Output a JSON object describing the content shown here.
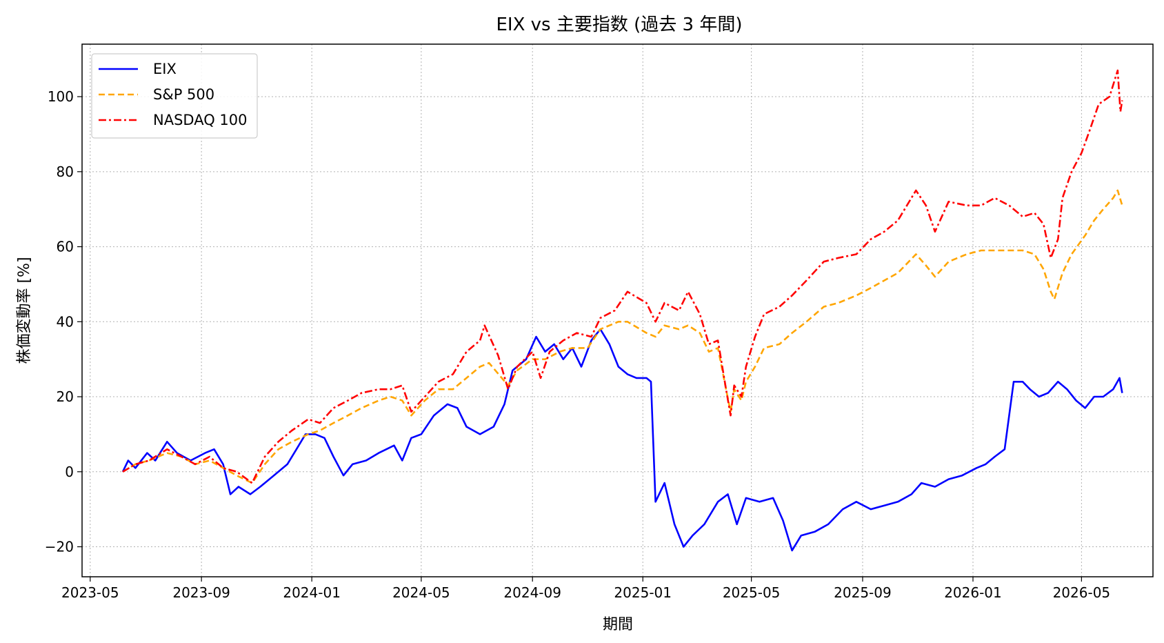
{
  "chart_data": {
    "type": "line",
    "title": "EIX vs 主要指数 (過去 3 年間)",
    "xlabel": "期間",
    "ylabel": "株価変動率 [%]",
    "xlim": [
      "2023-04-22",
      "2026-07-19"
    ],
    "ylim": [
      -28,
      114
    ],
    "x_ticks": [
      "2023-05",
      "2023-09",
      "2024-01",
      "2024-05",
      "2024-09",
      "2025-01",
      "2025-05",
      "2025-09",
      "2026-01",
      "2026-05"
    ],
    "y_ticks": [
      -20,
      0,
      20,
      40,
      60,
      80,
      100
    ],
    "grid": true,
    "legend_position": "top-left",
    "series": [
      {
        "name": "EIX",
        "color": "#0000ff",
        "style": "solid",
        "points": [
          [
            "2023-06-06",
            0
          ],
          [
            "2023-06-12",
            3
          ],
          [
            "2023-06-20",
            1
          ],
          [
            "2023-07-03",
            5
          ],
          [
            "2023-07-12",
            3
          ],
          [
            "2023-07-25",
            8
          ],
          [
            "2023-08-05",
            5
          ],
          [
            "2023-08-20",
            3
          ],
          [
            "2023-09-05",
            5
          ],
          [
            "2023-09-15",
            6
          ],
          [
            "2023-09-25",
            2
          ],
          [
            "2023-10-03",
            -6
          ],
          [
            "2023-10-12",
            -4
          ],
          [
            "2023-10-25",
            -6
          ],
          [
            "2023-11-05",
            -4
          ],
          [
            "2023-11-20",
            -1
          ],
          [
            "2023-12-05",
            2
          ],
          [
            "2023-12-15",
            6
          ],
          [
            "2023-12-25",
            10
          ],
          [
            "2024-01-05",
            10
          ],
          [
            "2024-01-15",
            9
          ],
          [
            "2024-01-25",
            4
          ],
          [
            "2024-02-05",
            -1
          ],
          [
            "2024-02-15",
            2
          ],
          [
            "2024-03-01",
            3
          ],
          [
            "2024-03-15",
            5
          ],
          [
            "2024-04-01",
            7
          ],
          [
            "2024-04-10",
            3
          ],
          [
            "2024-04-20",
            9
          ],
          [
            "2024-05-01",
            10
          ],
          [
            "2024-05-15",
            15
          ],
          [
            "2024-05-30",
            18
          ],
          [
            "2024-06-10",
            17
          ],
          [
            "2024-06-20",
            12
          ],
          [
            "2024-07-05",
            10
          ],
          [
            "2024-07-20",
            12
          ],
          [
            "2024-08-01",
            18
          ],
          [
            "2024-08-10",
            27
          ],
          [
            "2024-08-25",
            30
          ],
          [
            "2024-09-05",
            36
          ],
          [
            "2024-09-15",
            32
          ],
          [
            "2024-09-25",
            34
          ],
          [
            "2024-10-05",
            30
          ],
          [
            "2024-10-15",
            33
          ],
          [
            "2024-10-25",
            28
          ],
          [
            "2024-11-05",
            35
          ],
          [
            "2024-11-15",
            38
          ],
          [
            "2024-11-25",
            34
          ],
          [
            "2024-12-05",
            28
          ],
          [
            "2024-12-15",
            26
          ],
          [
            "2024-12-25",
            25
          ],
          [
            "2025-01-05",
            25
          ],
          [
            "2025-01-10",
            24
          ],
          [
            "2025-01-15",
            -8
          ],
          [
            "2025-01-25",
            -3
          ],
          [
            "2025-02-05",
            -14
          ],
          [
            "2025-02-15",
            -20
          ],
          [
            "2025-02-25",
            -17
          ],
          [
            "2025-03-10",
            -14
          ],
          [
            "2025-03-25",
            -8
          ],
          [
            "2025-04-05",
            -6
          ],
          [
            "2025-04-15",
            -14
          ],
          [
            "2025-04-25",
            -7
          ],
          [
            "2025-05-10",
            -8
          ],
          [
            "2025-05-25",
            -7
          ],
          [
            "2025-06-05",
            -13
          ],
          [
            "2025-06-15",
            -21
          ],
          [
            "2025-06-25",
            -17
          ],
          [
            "2025-07-10",
            -16
          ],
          [
            "2025-07-25",
            -14
          ],
          [
            "2025-08-10",
            -10
          ],
          [
            "2025-08-25",
            -8
          ],
          [
            "2025-09-10",
            -10
          ],
          [
            "2025-09-25",
            -9
          ],
          [
            "2025-10-10",
            -8
          ],
          [
            "2025-10-25",
            -6
          ],
          [
            "2025-11-05",
            -3
          ],
          [
            "2025-11-20",
            -4
          ],
          [
            "2025-12-05",
            -2
          ],
          [
            "2025-12-20",
            -1
          ],
          [
            "2026-01-05",
            1
          ],
          [
            "2026-01-15",
            2
          ],
          [
            "2026-01-25",
            4
          ],
          [
            "2026-02-05",
            6
          ],
          [
            "2026-02-15",
            24
          ],
          [
            "2026-02-25",
            24
          ],
          [
            "2026-03-05",
            22
          ],
          [
            "2026-03-15",
            20
          ],
          [
            "2026-03-25",
            21
          ],
          [
            "2026-04-05",
            24
          ],
          [
            "2026-04-15",
            22
          ],
          [
            "2026-04-25",
            19
          ],
          [
            "2026-05-05",
            17
          ],
          [
            "2026-05-15",
            20
          ],
          [
            "2026-05-25",
            20
          ],
          [
            "2026-06-05",
            22
          ],
          [
            "2026-06-12",
            25
          ],
          [
            "2026-06-15",
            21
          ]
        ]
      },
      {
        "name": "S&P 500",
        "color": "#ffa500",
        "style": "dashed",
        "points": [
          [
            "2023-06-06",
            0
          ],
          [
            "2023-06-20",
            2
          ],
          [
            "2023-07-05",
            3
          ],
          [
            "2023-07-25",
            5
          ],
          [
            "2023-08-10",
            4
          ],
          [
            "2023-08-25",
            2
          ],
          [
            "2023-09-10",
            3
          ],
          [
            "2023-09-25",
            1
          ],
          [
            "2023-10-10",
            -1
          ],
          [
            "2023-10-27",
            -3
          ],
          [
            "2023-11-10",
            2
          ],
          [
            "2023-11-25",
            6
          ],
          [
            "2023-12-10",
            8
          ],
          [
            "2023-12-28",
            10
          ],
          [
            "2024-01-10",
            11
          ],
          [
            "2024-01-25",
            13
          ],
          [
            "2024-02-10",
            15
          ],
          [
            "2024-02-25",
            17
          ],
          [
            "2024-03-15",
            19
          ],
          [
            "2024-03-28",
            20
          ],
          [
            "2024-04-10",
            19
          ],
          [
            "2024-04-20",
            15
          ],
          [
            "2024-05-05",
            19
          ],
          [
            "2024-05-20",
            22
          ],
          [
            "2024-06-05",
            22
          ],
          [
            "2024-06-20",
            25
          ],
          [
            "2024-07-05",
            28
          ],
          [
            "2024-07-15",
            29
          ],
          [
            "2024-08-05",
            23
          ],
          [
            "2024-08-15",
            27
          ],
          [
            "2024-09-01",
            30
          ],
          [
            "2024-09-15",
            30
          ],
          [
            "2024-10-01",
            32
          ],
          [
            "2024-10-15",
            33
          ],
          [
            "2024-11-01",
            33
          ],
          [
            "2024-11-15",
            38
          ],
          [
            "2024-12-05",
            40
          ],
          [
            "2024-12-15",
            40
          ],
          [
            "2025-01-05",
            37
          ],
          [
            "2025-01-15",
            36
          ],
          [
            "2025-01-25",
            39
          ],
          [
            "2025-02-10",
            38
          ],
          [
            "2025-02-20",
            39
          ],
          [
            "2025-03-05",
            37
          ],
          [
            "2025-03-15",
            32
          ],
          [
            "2025-03-25",
            33
          ],
          [
            "2025-04-03",
            22
          ],
          [
            "2025-04-08",
            16
          ],
          [
            "2025-04-12",
            22
          ],
          [
            "2025-04-20",
            19
          ],
          [
            "2025-04-25",
            24
          ],
          [
            "2025-05-05",
            28
          ],
          [
            "2025-05-15",
            33
          ],
          [
            "2025-06-01",
            34
          ],
          [
            "2025-06-15",
            37
          ],
          [
            "2025-07-01",
            40
          ],
          [
            "2025-07-20",
            44
          ],
          [
            "2025-08-05",
            45
          ],
          [
            "2025-08-25",
            47
          ],
          [
            "2025-09-10",
            49
          ],
          [
            "2025-09-25",
            51
          ],
          [
            "2025-10-10",
            53
          ],
          [
            "2025-10-30",
            58
          ],
          [
            "2025-11-10",
            55
          ],
          [
            "2025-11-20",
            52
          ],
          [
            "2025-12-05",
            56
          ],
          [
            "2025-12-25",
            58
          ],
          [
            "2026-01-10",
            59
          ],
          [
            "2026-01-25",
            59
          ],
          [
            "2026-02-10",
            59
          ],
          [
            "2026-02-25",
            59
          ],
          [
            "2026-03-10",
            58
          ],
          [
            "2026-03-20",
            54
          ],
          [
            "2026-03-28",
            48
          ],
          [
            "2026-04-01",
            46
          ],
          [
            "2026-04-10",
            53
          ],
          [
            "2026-04-20",
            58
          ],
          [
            "2026-05-05",
            63
          ],
          [
            "2026-05-15",
            67
          ],
          [
            "2026-05-25",
            70
          ],
          [
            "2026-06-05",
            73
          ],
          [
            "2026-06-10",
            75
          ],
          [
            "2026-06-15",
            71
          ]
        ]
      },
      {
        "name": "NASDAQ 100",
        "color": "#ff0000",
        "style": "dashdot",
        "points": [
          [
            "2023-06-06",
            0
          ],
          [
            "2023-06-20",
            2
          ],
          [
            "2023-07-05",
            3
          ],
          [
            "2023-07-25",
            6
          ],
          [
            "2023-08-10",
            4
          ],
          [
            "2023-08-25",
            2
          ],
          [
            "2023-09-10",
            4
          ],
          [
            "2023-09-25",
            1
          ],
          [
            "2023-10-10",
            0
          ],
          [
            "2023-10-27",
            -3
          ],
          [
            "2023-11-10",
            4
          ],
          [
            "2023-11-25",
            8
          ],
          [
            "2023-12-10",
            11
          ],
          [
            "2023-12-28",
            14
          ],
          [
            "2024-01-10",
            13
          ],
          [
            "2024-01-25",
            17
          ],
          [
            "2024-02-10",
            19
          ],
          [
            "2024-02-25",
            21
          ],
          [
            "2024-03-15",
            22
          ],
          [
            "2024-03-28",
            22
          ],
          [
            "2024-04-10",
            23
          ],
          [
            "2024-04-20",
            16
          ],
          [
            "2024-05-05",
            20
          ],
          [
            "2024-05-20",
            24
          ],
          [
            "2024-06-05",
            26
          ],
          [
            "2024-06-20",
            32
          ],
          [
            "2024-07-05",
            35
          ],
          [
            "2024-07-10",
            39
          ],
          [
            "2024-07-25",
            31
          ],
          [
            "2024-08-05",
            22
          ],
          [
            "2024-08-15",
            28
          ],
          [
            "2024-09-01",
            32
          ],
          [
            "2024-09-10",
            25
          ],
          [
            "2024-09-20",
            32
          ],
          [
            "2024-10-05",
            35
          ],
          [
            "2024-10-20",
            37
          ],
          [
            "2024-11-05",
            36
          ],
          [
            "2024-11-15",
            41
          ],
          [
            "2024-12-01",
            43
          ],
          [
            "2024-12-15",
            48
          ],
          [
            "2025-01-05",
            45
          ],
          [
            "2025-01-15",
            40
          ],
          [
            "2025-01-25",
            45
          ],
          [
            "2025-02-10",
            43
          ],
          [
            "2025-02-20",
            48
          ],
          [
            "2025-03-05",
            42
          ],
          [
            "2025-03-15",
            34
          ],
          [
            "2025-03-25",
            35
          ],
          [
            "2025-04-03",
            22
          ],
          [
            "2025-04-08",
            15
          ],
          [
            "2025-04-12",
            23
          ],
          [
            "2025-04-20",
            20
          ],
          [
            "2025-04-25",
            28
          ],
          [
            "2025-05-05",
            36
          ],
          [
            "2025-05-15",
            42
          ],
          [
            "2025-06-01",
            44
          ],
          [
            "2025-06-15",
            47
          ],
          [
            "2025-07-01",
            51
          ],
          [
            "2025-07-20",
            56
          ],
          [
            "2025-08-05",
            57
          ],
          [
            "2025-08-25",
            58
          ],
          [
            "2025-09-10",
            62
          ],
          [
            "2025-09-25",
            64
          ],
          [
            "2025-10-10",
            67
          ],
          [
            "2025-10-30",
            75
          ],
          [
            "2025-11-10",
            71
          ],
          [
            "2025-11-20",
            64
          ],
          [
            "2025-12-05",
            72
          ],
          [
            "2025-12-25",
            71
          ],
          [
            "2026-01-10",
            71
          ],
          [
            "2026-01-25",
            73
          ],
          [
            "2026-02-10",
            71
          ],
          [
            "2026-02-25",
            68
          ],
          [
            "2026-03-10",
            69
          ],
          [
            "2026-03-20",
            66
          ],
          [
            "2026-03-28",
            57
          ],
          [
            "2026-04-05",
            62
          ],
          [
            "2026-04-10",
            73
          ],
          [
            "2026-04-20",
            80
          ],
          [
            "2026-05-01",
            85
          ],
          [
            "2026-05-10",
            91
          ],
          [
            "2026-05-20",
            98
          ],
          [
            "2026-06-01",
            100
          ],
          [
            "2026-06-10",
            107
          ],
          [
            "2026-06-13",
            96
          ],
          [
            "2026-06-15",
            99
          ]
        ]
      }
    ]
  }
}
